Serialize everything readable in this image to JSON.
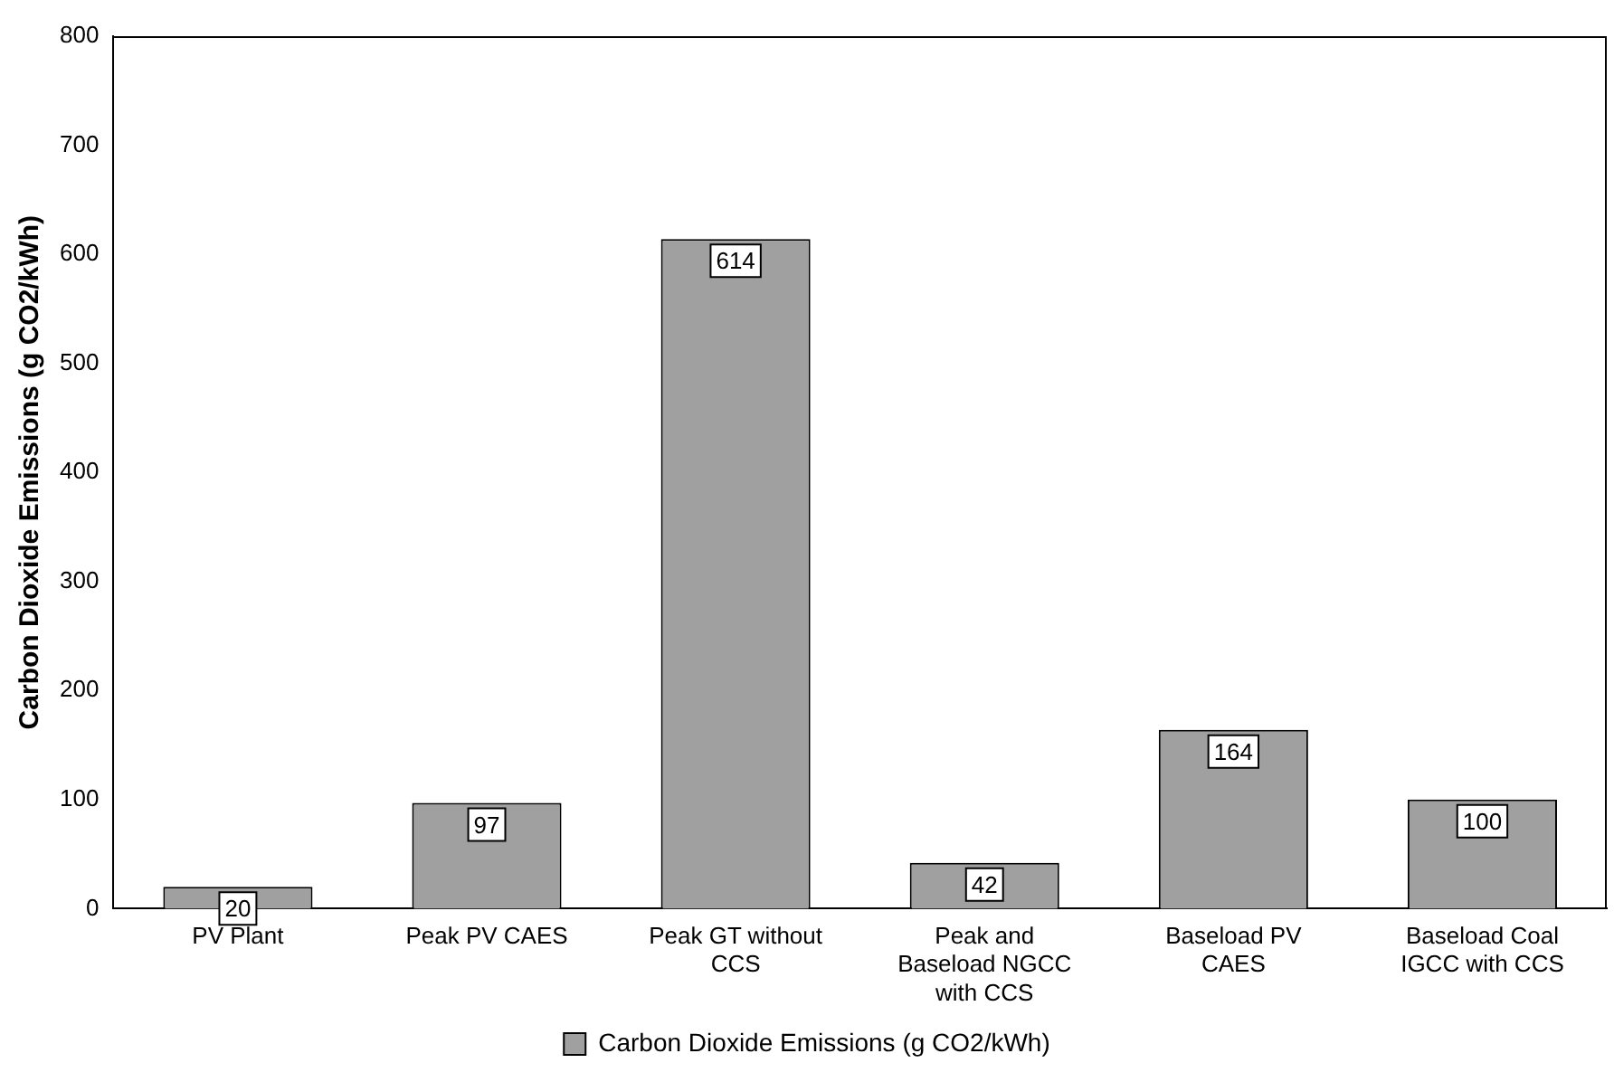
{
  "chart_data": {
    "type": "bar",
    "ylabel": "Carbon Dioxide Emissions (g CO2/kWh)",
    "categories": [
      "PV Plant",
      "Peak PV CAES",
      "Peak GT without CCS",
      "Peak and Baseload NGCC with CCS",
      "Baseload PV CAES",
      "Baseload Coal IGCC with CCS"
    ],
    "series": [
      {
        "name": "Carbon Dioxide Emissions (g CO2/kWh)",
        "color": "#a0a0a0",
        "values": [
          20,
          97,
          614,
          42,
          164,
          100
        ]
      }
    ],
    "ylim": [
      0,
      800
    ],
    "yticks": [
      0,
      100,
      200,
      300,
      400,
      500,
      600,
      700,
      800
    ],
    "grid": false,
    "data_labels": true,
    "legend": "bottom"
  }
}
